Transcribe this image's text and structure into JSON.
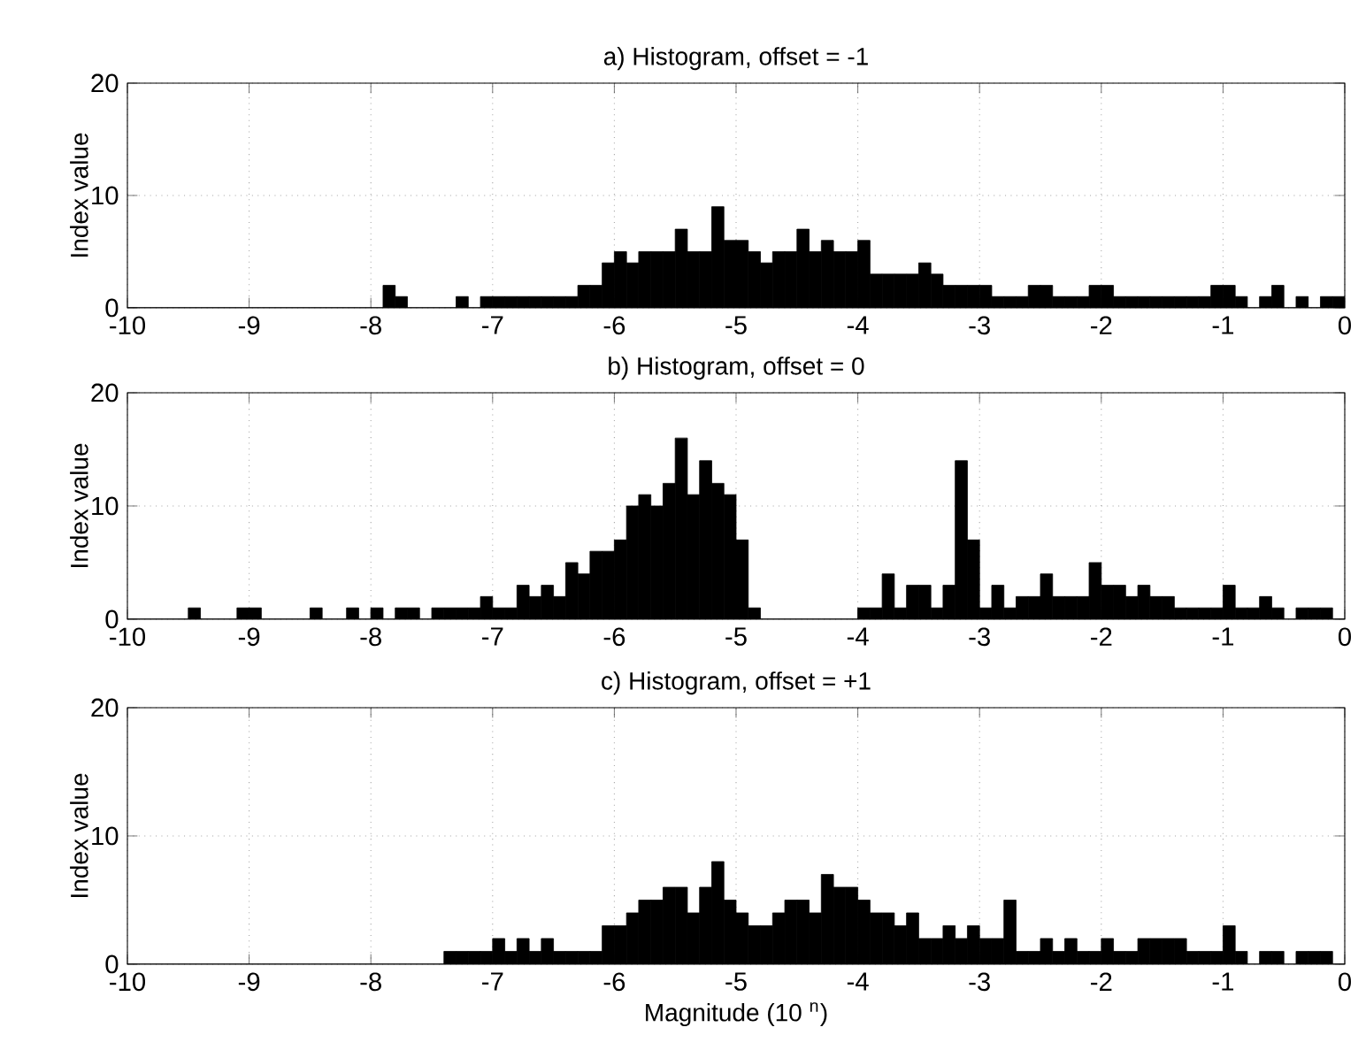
{
  "chart_data": [
    {
      "type": "histogram",
      "title": "a) Histogram, offset = -1",
      "ylabel": "Index value",
      "color": "#000000",
      "grid": true,
      "bins": [
        -10,
        -9.9,
        -9.8,
        -9.7,
        -9.6,
        -9.5,
        -9.4,
        -9.3,
        -9.2,
        -9.1,
        -9,
        -8.9,
        -8.8,
        -8.7,
        -8.6,
        -8.5,
        -8.4,
        -8.3,
        -8.2,
        -8.1,
        -8,
        -7.9,
        -7.8,
        -7.7,
        -7.6,
        -7.5,
        -7.4,
        -7.3,
        -7.2,
        -7.1,
        -7,
        -6.9,
        -6.8,
        -6.7,
        -6.6,
        -6.5,
        -6.4,
        -6.3,
        -6.2,
        -6.1,
        -6,
        -5.9,
        -5.8,
        -5.7,
        -5.6,
        -5.5,
        -5.4,
        -5.3,
        -5.2,
        -5.1,
        -5,
        -4.9,
        -4.8,
        -4.7,
        -4.6,
        -4.5,
        -4.4,
        -4.3,
        -4.2,
        -4.1,
        -4,
        -3.9,
        -3.8,
        -3.7,
        -3.6,
        -3.5,
        -3.4,
        -3.3,
        -3.2,
        -3.1,
        -3,
        -2.9,
        -2.8,
        -2.7,
        -2.6,
        -2.5,
        -2.4,
        -2.3,
        -2.2,
        -2.1,
        -2,
        -1.9,
        -1.8,
        -1.7,
        -1.6,
        -1.5,
        -1.4,
        -1.3,
        -1.2,
        -1.1,
        -1,
        -0.9,
        -0.8,
        -0.7,
        -0.6,
        -0.5,
        -0.4,
        -0.3,
        -0.2,
        -0.1,
        0
      ],
      "values": [
        0,
        0,
        0,
        0,
        0,
        0,
        0,
        0,
        0,
        0,
        0,
        0,
        0,
        0,
        0,
        0,
        0,
        0,
        0,
        0,
        0,
        2,
        1,
        0,
        0,
        0,
        0,
        1,
        0,
        1,
        1,
        1,
        1,
        1,
        1,
        1,
        1,
        2,
        2,
        4,
        5,
        4,
        5,
        5,
        5,
        7,
        5,
        5,
        9,
        6,
        6,
        5,
        4,
        5,
        5,
        7,
        5,
        6,
        5,
        5,
        6,
        3,
        3,
        3,
        3,
        4,
        3,
        2,
        2,
        2,
        2,
        1,
        1,
        1,
        2,
        2,
        1,
        1,
        1,
        2,
        2,
        1,
        1,
        1,
        1,
        1,
        1,
        1,
        1,
        2,
        2,
        1,
        0,
        1,
        2,
        0,
        1,
        0,
        1,
        1
      ],
      "xlim": [
        -10,
        0
      ],
      "ylim": [
        0,
        20
      ],
      "xticks": [
        -10,
        -9,
        -8,
        -7,
        -6,
        -5,
        -4,
        -3,
        -2,
        -1,
        0
      ],
      "yticks": [
        0,
        10,
        20
      ]
    },
    {
      "type": "histogram",
      "title": "b) Histogram, offset = 0",
      "ylabel": "Index value",
      "color": "#000000",
      "grid": true,
      "bins": [
        -10,
        -9.9,
        -9.8,
        -9.7,
        -9.6,
        -9.5,
        -9.4,
        -9.3,
        -9.2,
        -9.1,
        -9,
        -8.9,
        -8.8,
        -8.7,
        -8.6,
        -8.5,
        -8.4,
        -8.3,
        -8.2,
        -8.1,
        -8,
        -7.9,
        -7.8,
        -7.7,
        -7.6,
        -7.5,
        -7.4,
        -7.3,
        -7.2,
        -7.1,
        -7,
        -6.9,
        -6.8,
        -6.7,
        -6.6,
        -6.5,
        -6.4,
        -6.3,
        -6.2,
        -6.1,
        -6,
        -5.9,
        -5.8,
        -5.7,
        -5.6,
        -5.5,
        -5.4,
        -5.3,
        -5.2,
        -5.1,
        -5,
        -4.9,
        -4.8,
        -4.7,
        -4.6,
        -4.5,
        -4.4,
        -4.3,
        -4.2,
        -4.1,
        -4,
        -3.9,
        -3.8,
        -3.7,
        -3.6,
        -3.5,
        -3.4,
        -3.3,
        -3.2,
        -3.1,
        -3,
        -2.9,
        -2.8,
        -2.7,
        -2.6,
        -2.5,
        -2.4,
        -2.3,
        -2.2,
        -2.1,
        -2,
        -1.9,
        -1.8,
        -1.7,
        -1.6,
        -1.5,
        -1.4,
        -1.3,
        -1.2,
        -1.1,
        -1,
        -0.9,
        -0.8,
        -0.7,
        -0.6,
        -0.5,
        -0.4,
        -0.3,
        -0.2,
        -0.1,
        0
      ],
      "values": [
        0,
        0,
        0,
        0,
        0,
        1,
        0,
        0,
        0,
        1,
        1,
        0,
        0,
        0,
        0,
        1,
        0,
        0,
        1,
        0,
        1,
        0,
        1,
        1,
        0,
        1,
        1,
        1,
        1,
        2,
        1,
        1,
        3,
        2,
        3,
        2,
        5,
        4,
        6,
        6,
        7,
        10,
        11,
        10,
        12,
        16,
        11,
        14,
        12,
        11,
        7,
        1,
        0,
        0,
        0,
        0,
        0,
        0,
        0,
        0,
        1,
        1,
        4,
        1,
        3,
        3,
        1,
        3,
        14,
        7,
        1,
        3,
        1,
        2,
        2,
        4,
        2,
        2,
        2,
        5,
        3,
        3,
        2,
        3,
        2,
        2,
        1,
        1,
        1,
        1,
        3,
        1,
        1,
        2,
        1,
        0,
        1,
        1,
        1,
        0
      ],
      "xlim": [
        -10,
        0
      ],
      "ylim": [
        0,
        20
      ],
      "xticks": [
        -10,
        -9,
        -8,
        -7,
        -6,
        -5,
        -4,
        -3,
        -2,
        -1,
        0
      ],
      "yticks": [
        0,
        10,
        20
      ]
    },
    {
      "type": "histogram",
      "title": "c) Histogram, offset = +1",
      "ylabel": "Index value",
      "xlabel": "Magnitude (10 $^{n}$)",
      "color": "#000000",
      "grid": true,
      "bins": [
        -10,
        -9.9,
        -9.8,
        -9.7,
        -9.6,
        -9.5,
        -9.4,
        -9.3,
        -9.2,
        -9.1,
        -9,
        -8.9,
        -8.8,
        -8.7,
        -8.6,
        -8.5,
        -8.4,
        -8.3,
        -8.2,
        -8.1,
        -8,
        -7.9,
        -7.8,
        -7.7,
        -7.6,
        -7.5,
        -7.4,
        -7.3,
        -7.2,
        -7.1,
        -7,
        -6.9,
        -6.8,
        -6.7,
        -6.6,
        -6.5,
        -6.4,
        -6.3,
        -6.2,
        -6.1,
        -6,
        -5.9,
        -5.8,
        -5.7,
        -5.6,
        -5.5,
        -5.4,
        -5.3,
        -5.2,
        -5.1,
        -5,
        -4.9,
        -4.8,
        -4.7,
        -4.6,
        -4.5,
        -4.4,
        -4.3,
        -4.2,
        -4.1,
        -4,
        -3.9,
        -3.8,
        -3.7,
        -3.6,
        -3.5,
        -3.4,
        -3.3,
        -3.2,
        -3.1,
        -3,
        -2.9,
        -2.8,
        -2.7,
        -2.6,
        -2.5,
        -2.4,
        -2.3,
        -2.2,
        -2.1,
        -2,
        -1.9,
        -1.8,
        -1.7,
        -1.6,
        -1.5,
        -1.4,
        -1.3,
        -1.2,
        -1.1,
        -1,
        -0.9,
        -0.8,
        -0.7,
        -0.6,
        -0.5,
        -0.4,
        -0.3,
        -0.2,
        -0.1,
        0
      ],
      "values": [
        0,
        0,
        0,
        0,
        0,
        0,
        0,
        0,
        0,
        0,
        0,
        0,
        0,
        0,
        0,
        0,
        0,
        0,
        0,
        0,
        0,
        0,
        0,
        0,
        0,
        0,
        1,
        1,
        1,
        1,
        2,
        1,
        2,
        1,
        2,
        1,
        1,
        1,
        1,
        3,
        3,
        4,
        5,
        5,
        6,
        6,
        4,
        6,
        8,
        5,
        4,
        3,
        3,
        4,
        5,
        5,
        4,
        7,
        6,
        6,
        5,
        4,
        4,
        3,
        4,
        2,
        2,
        3,
        2,
        3,
        2,
        2,
        5,
        1,
        1,
        2,
        1,
        2,
        1,
        1,
        2,
        1,
        1,
        2,
        2,
        2,
        2,
        1,
        1,
        1,
        3,
        1,
        0,
        1,
        1,
        0,
        1,
        1,
        1,
        0
      ],
      "xlim": [
        -10,
        0
      ],
      "ylim": [
        0,
        20
      ],
      "xticks": [
        -10,
        -9,
        -8,
        -7,
        -6,
        -5,
        -4,
        -3,
        -2,
        -1,
        0
      ],
      "yticks": [
        0,
        10,
        20
      ]
    }
  ]
}
